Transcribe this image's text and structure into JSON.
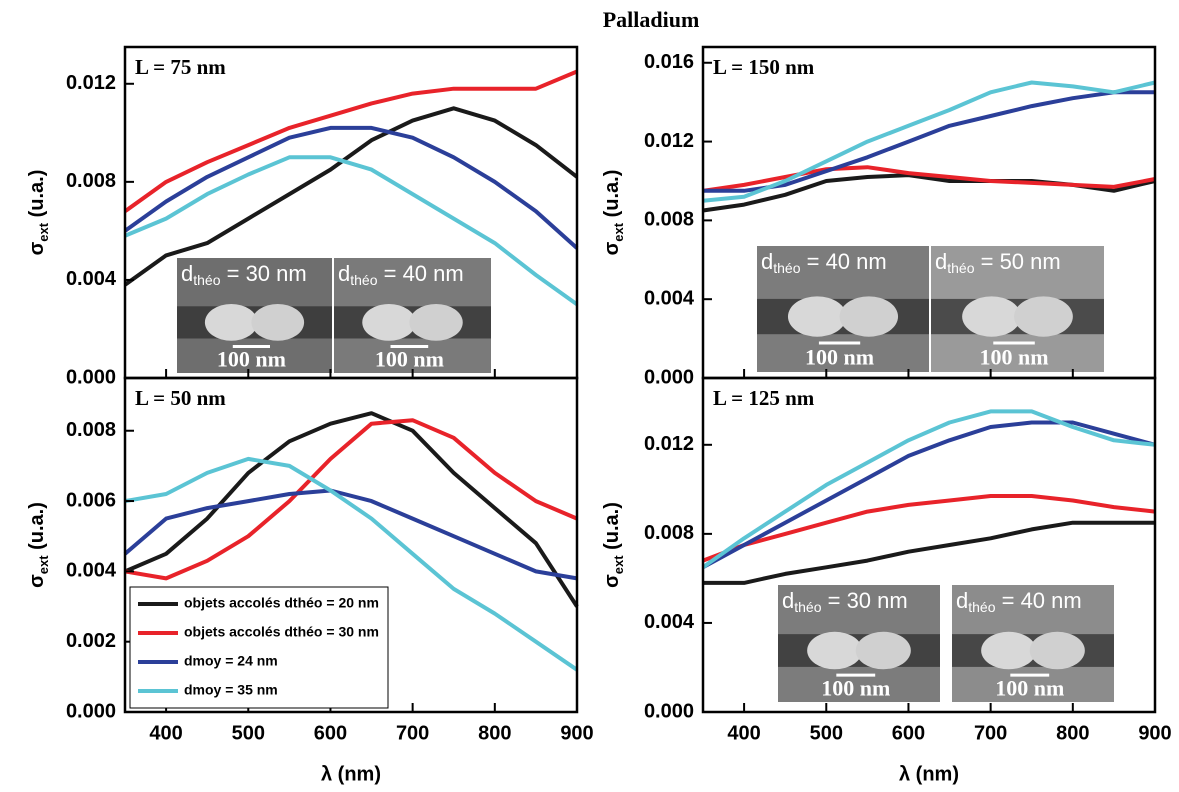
{
  "title": "Palladium",
  "chart_data": [
    {
      "type": "line",
      "label": "L = 75 nm",
      "ylabel": [
        "σ",
        "ext",
        " (u.a.)"
      ],
      "x": [
        350,
        400,
        450,
        500,
        550,
        600,
        650,
        700,
        750,
        800,
        850,
        900
      ],
      "xlim": [
        350,
        900
      ],
      "xticks": [
        400,
        500,
        600,
        700,
        800,
        900
      ],
      "ylim": [
        0,
        0.0135
      ],
      "yticks": [
        {
          "value": 0,
          "label": "0.000"
        },
        0.004,
        0.008,
        0.012
      ],
      "series": [
        {
          "color": "#1a1a1a",
          "values": [
            0.0038,
            0.005,
            0.0055,
            0.0065,
            0.0075,
            0.0085,
            0.0097,
            0.0105,
            0.011,
            0.0105,
            0.0095,
            0.0082
          ]
        },
        {
          "color": "#e8232a",
          "values": [
            0.0068,
            0.008,
            0.0088,
            0.0095,
            0.0102,
            0.0107,
            0.0112,
            0.0116,
            0.0118,
            0.0118,
            0.0118,
            0.0125
          ]
        },
        {
          "color": "#2b3f99",
          "values": [
            0.006,
            0.0072,
            0.0082,
            0.009,
            0.0098,
            0.0102,
            0.0102,
            0.0098,
            0.009,
            0.008,
            0.0068,
            0.0053
          ]
        },
        {
          "color": "#5bc4d4",
          "values": [
            0.0058,
            0.0065,
            0.0075,
            0.0083,
            0.009,
            0.009,
            0.0085,
            0.0075,
            0.0065,
            0.0055,
            0.0042,
            0.003
          ]
        }
      ],
      "insets": [
        {
          "label": [
            "d",
            "théo",
            " = 30 nm"
          ],
          "scale": "100 nm"
        },
        {
          "label": [
            "d",
            "théo",
            " = 40 nm"
          ],
          "scale": "100 nm"
        }
      ]
    },
    {
      "type": "line",
      "label": "L = 150 nm",
      "ylabel": [
        "σ",
        "ext",
        " (u.a.)"
      ],
      "x": [
        350,
        400,
        450,
        500,
        550,
        600,
        650,
        700,
        750,
        800,
        850,
        900
      ],
      "xlim": [
        350,
        900
      ],
      "xticks": [
        400,
        500,
        600,
        700,
        800,
        900
      ],
      "ylim": [
        0,
        0.0168
      ],
      "yticks": [
        {
          "value": 0,
          "label": "0.000"
        },
        0.004,
        0.008,
        0.012,
        0.016
      ],
      "series": [
        {
          "color": "#1a1a1a",
          "values": [
            0.0085,
            0.0088,
            0.0093,
            0.01,
            0.0102,
            0.0103,
            0.01,
            0.01,
            0.01,
            0.0098,
            0.0095,
            0.01
          ]
        },
        {
          "color": "#e8232a",
          "values": [
            0.0095,
            0.0098,
            0.0102,
            0.0106,
            0.0107,
            0.0104,
            0.0102,
            0.01,
            0.0099,
            0.0098,
            0.0097,
            0.0101
          ]
        },
        {
          "color": "#2b3f99",
          "values": [
            0.0095,
            0.0095,
            0.0098,
            0.0105,
            0.0112,
            0.012,
            0.0128,
            0.0133,
            0.0138,
            0.0142,
            0.0145,
            0.0145
          ]
        },
        {
          "color": "#5bc4d4",
          "values": [
            0.009,
            0.0092,
            0.01,
            0.011,
            0.012,
            0.0128,
            0.0136,
            0.0145,
            0.015,
            0.0148,
            0.0145,
            0.015
          ]
        }
      ],
      "insets": [
        {
          "label": [
            "d",
            "théo",
            " = 40 nm"
          ],
          "scale": "100 nm"
        },
        {
          "label": [
            "d",
            "théo",
            " = 50 nm"
          ],
          "scale": "100 nm"
        }
      ]
    },
    {
      "type": "line",
      "label": "L = 50 nm",
      "ylabel": [
        "σ",
        "ext",
        " (u.a.)"
      ],
      "xlabel": "λ (nm)",
      "x": [
        350,
        400,
        450,
        500,
        550,
        600,
        650,
        700,
        750,
        800,
        850,
        900
      ],
      "xlim": [
        350,
        900
      ],
      "xticks": [
        400,
        500,
        600,
        700,
        800,
        900
      ],
      "ylim": [
        0,
        0.0095
      ],
      "yticks": [
        {
          "value": 0,
          "label": "0.000"
        },
        0.002,
        0.004,
        0.006,
        0.008
      ],
      "legend": "lower left",
      "series": [
        {
          "name": "objets accolés dthéo = 20 nm",
          "color": "#1a1a1a",
          "values": [
            0.004,
            0.0045,
            0.0055,
            0.0068,
            0.0077,
            0.0082,
            0.0085,
            0.008,
            0.0068,
            0.0058,
            0.0048,
            0.003
          ]
        },
        {
          "name": "objets accolés dthéo = 30 nm",
          "color": "#e8232a",
          "values": [
            0.004,
            0.0038,
            0.0043,
            0.005,
            0.006,
            0.0072,
            0.0082,
            0.0083,
            0.0078,
            0.0068,
            0.006,
            0.0055
          ]
        },
        {
          "name": "dmoy = 24 nm",
          "color": "#2b3f99",
          "values": [
            0.0045,
            0.0055,
            0.0058,
            0.006,
            0.0062,
            0.0063,
            0.006,
            0.0055,
            0.005,
            0.0045,
            0.004,
            0.0038
          ]
        },
        {
          "name": "dmoy = 35 nm",
          "color": "#5bc4d4",
          "values": [
            0.006,
            0.0062,
            0.0068,
            0.0072,
            0.007,
            0.0063,
            0.0055,
            0.0045,
            0.0035,
            0.0028,
            0.002,
            0.0012
          ]
        }
      ]
    },
    {
      "type": "line",
      "label": "L = 125 nm",
      "ylabel": [
        "σ",
        "ext",
        " (u.a.)"
      ],
      "xlabel": "λ (nm)",
      "x": [
        350,
        400,
        450,
        500,
        550,
        600,
        650,
        700,
        750,
        800,
        850,
        900
      ],
      "xlim": [
        350,
        900
      ],
      "xticks": [
        400,
        500,
        600,
        700,
        800,
        900
      ],
      "ylim": [
        0,
        0.015
      ],
      "yticks": [
        {
          "value": 0,
          "label": "0.000"
        },
        0.004,
        0.008,
        0.012
      ],
      "series": [
        {
          "color": "#1a1a1a",
          "values": [
            0.0058,
            0.0058,
            0.0062,
            0.0065,
            0.0068,
            0.0072,
            0.0075,
            0.0078,
            0.0082,
            0.0085,
            0.0085,
            0.0085
          ]
        },
        {
          "color": "#e8232a",
          "values": [
            0.0068,
            0.0075,
            0.008,
            0.0085,
            0.009,
            0.0093,
            0.0095,
            0.0097,
            0.0097,
            0.0095,
            0.0092,
            0.009
          ]
        },
        {
          "color": "#2b3f99",
          "values": [
            0.0065,
            0.0075,
            0.0085,
            0.0095,
            0.0105,
            0.0115,
            0.0122,
            0.0128,
            0.013,
            0.013,
            0.0125,
            0.012
          ]
        },
        {
          "color": "#5bc4d4",
          "values": [
            0.0065,
            0.0078,
            0.009,
            0.0102,
            0.0112,
            0.0122,
            0.013,
            0.0135,
            0.0135,
            0.0128,
            0.0122,
            0.012
          ]
        }
      ],
      "insets": [
        {
          "label": [
            "d",
            "théo",
            " = 30 nm"
          ],
          "scale": "100 nm"
        },
        {
          "label": [
            "d",
            "théo",
            " = 40 nm"
          ],
          "scale": "100 nm"
        }
      ]
    }
  ]
}
